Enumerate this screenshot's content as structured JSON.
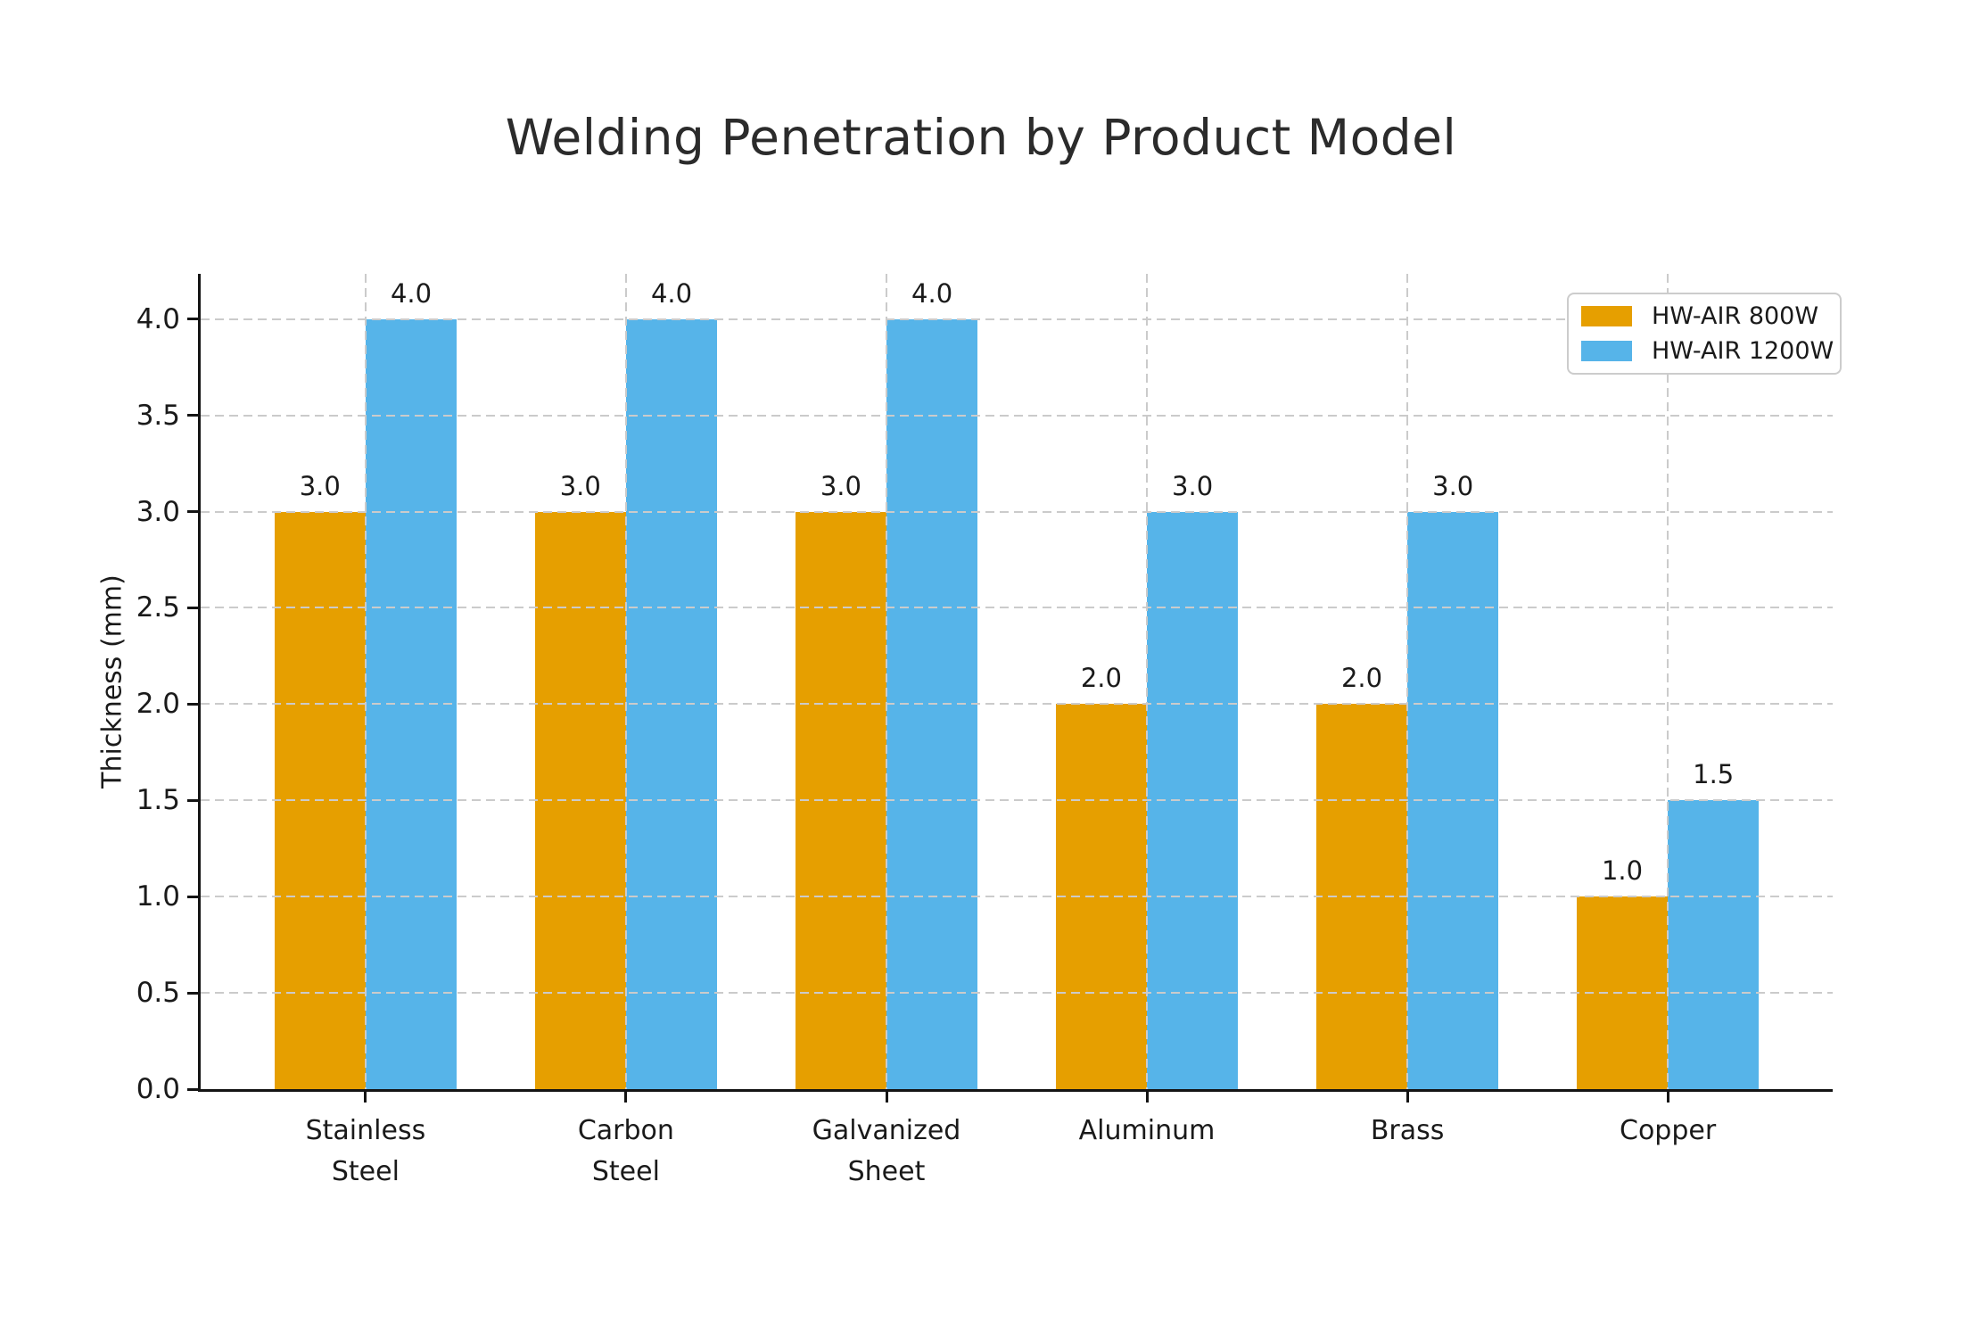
{
  "chart_data": {
    "type": "bar",
    "title": "Welding Penetration by Product Model",
    "xlabel": "",
    "ylabel": "Thickness (mm)",
    "categories": [
      "Stainless Steel",
      "Carbon Steel",
      "Galvanized Sheet",
      "Aluminum",
      "Brass",
      "Copper"
    ],
    "category_label_lines": [
      [
        "Stainless",
        "Steel"
      ],
      [
        "Carbon",
        "Steel"
      ],
      [
        "Galvanized",
        "Sheet"
      ],
      [
        "Aluminum"
      ],
      [
        "Brass"
      ],
      [
        "Copper"
      ]
    ],
    "series": [
      {
        "name": "HW-AIR 800W",
        "color": "#E69F00",
        "values": [
          3.0,
          3.0,
          3.0,
          2.0,
          2.0,
          1.0
        ]
      },
      {
        "name": "HW-AIR 1200W",
        "color": "#56B4E9",
        "values": [
          4.0,
          4.0,
          4.0,
          3.0,
          3.0,
          1.5
        ]
      }
    ],
    "bar_value_labels": [
      "3.0",
      "3.0",
      "3.0",
      "2.0",
      "2.0",
      "1.0",
      "4.0",
      "4.0",
      "4.0",
      "3.0",
      "3.0",
      "1.5"
    ],
    "yticks": [
      "0.0",
      "0.5",
      "1.0",
      "1.5",
      "2.0",
      "2.5",
      "3.0",
      "3.5",
      "4.0"
    ],
    "ylim": [
      0,
      4.235
    ],
    "bar_width_fraction": 0.35,
    "grid": "dashed, horizontal at every 0.5 and vertical at category centers, drawn above bars",
    "legend_position": "upper-right",
    "colors": {
      "series_800w": "#E69F00",
      "series_1200w": "#56B4E9",
      "grid": "#cbcbcb",
      "spine": "#141414",
      "text": "#1a1a1a",
      "legend_border": "#cccccc",
      "background": "#ffffff"
    }
  }
}
